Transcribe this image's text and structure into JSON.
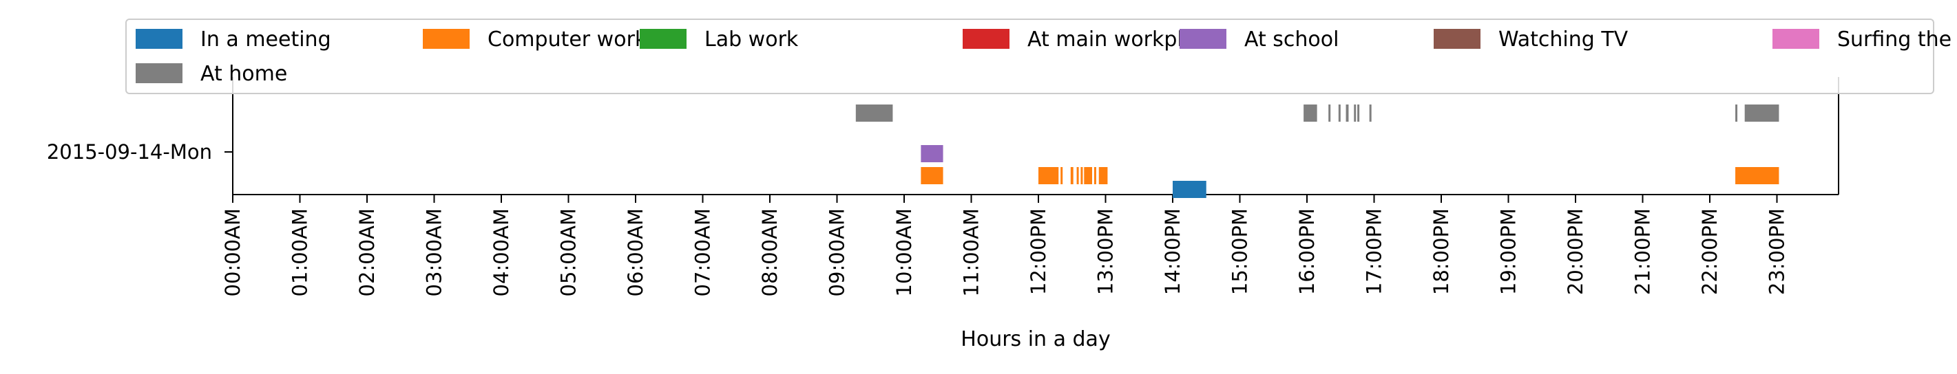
{
  "chart_data": {
    "type": "timeline",
    "xlabel": "Hours in a day",
    "ylabel": "",
    "xlim": [
      0,
      24
    ],
    "grid": false,
    "legend_placement": "top",
    "row_label": "2015-09-14-Mon",
    "x_ticks": [
      "00:00AM",
      "01:00AM",
      "02:00AM",
      "03:00AM",
      "04:00AM",
      "05:00AM",
      "06:00AM",
      "07:00AM",
      "08:00AM",
      "09:00AM",
      "10:00AM",
      "11:00AM",
      "12:00PM",
      "13:00PM",
      "14:00PM",
      "15:00PM",
      "16:00PM",
      "17:00PM",
      "18:00PM",
      "19:00PM",
      "20:00PM",
      "21:00PM",
      "22:00PM",
      "23:00PM"
    ],
    "series": [
      {
        "name": "In a meeting",
        "color": "#1f77b4",
        "lane": 0,
        "intervals": [
          [
            14.0,
            14.5
          ]
        ]
      },
      {
        "name": "Computer work",
        "color": "#ff7f0e",
        "lane": 1,
        "intervals": [
          [
            10.25,
            10.58
          ],
          [
            12.0,
            12.3
          ],
          [
            12.33,
            12.36
          ],
          [
            12.48,
            12.52
          ],
          [
            12.57,
            12.6
          ],
          [
            12.63,
            12.66
          ],
          [
            12.68,
            12.8
          ],
          [
            12.83,
            12.86
          ],
          [
            12.9,
            13.03
          ],
          [
            22.38,
            23.03
          ]
        ]
      },
      {
        "name": "Lab work",
        "color": "#2ca02c",
        "lane": 2,
        "intervals": []
      },
      {
        "name": "At main workplace",
        "color": "#d62728",
        "lane": 2,
        "intervals": []
      },
      {
        "name": "At school",
        "color": "#9467bd",
        "lane": 2,
        "intervals": [
          [
            10.25,
            10.58
          ]
        ]
      },
      {
        "name": "Watching TV",
        "color": "#8c564b",
        "lane": 3,
        "intervals": []
      },
      {
        "name": "Surfing the internet",
        "color": "#e377c2",
        "lane": 3,
        "intervals": []
      },
      {
        "name": "At home",
        "color": "#7f7f7f",
        "lane": 3,
        "intervals": [
          [
            9.28,
            9.83
          ],
          [
            15.95,
            16.15
          ],
          [
            16.32,
            16.35
          ],
          [
            16.47,
            16.5
          ],
          [
            16.58,
            16.62
          ],
          [
            16.7,
            16.73
          ],
          [
            16.75,
            16.78
          ],
          [
            16.93,
            16.96
          ],
          [
            22.38,
            22.41
          ],
          [
            22.52,
            23.03
          ]
        ]
      }
    ]
  }
}
